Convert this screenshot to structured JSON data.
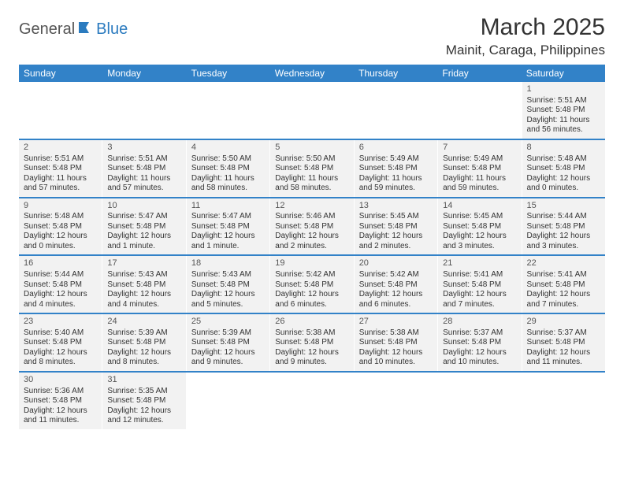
{
  "logo": {
    "text_general": "General",
    "text_blue": "Blue",
    "icon_color": "#2b7bbf"
  },
  "title": "March 2025",
  "location": "Mainit, Caraga, Philippines",
  "day_headers": [
    "Sunday",
    "Monday",
    "Tuesday",
    "Wednesday",
    "Thursday",
    "Friday",
    "Saturday"
  ],
  "colors": {
    "header_bg": "#3282c8",
    "cell_bg": "#f2f2f2",
    "row_border": "#3282c8",
    "text": "#333333"
  },
  "weeks": [
    [
      {
        "day": "",
        "sunrise": "",
        "sunset": "",
        "daylight": ""
      },
      {
        "day": "",
        "sunrise": "",
        "sunset": "",
        "daylight": ""
      },
      {
        "day": "",
        "sunrise": "",
        "sunset": "",
        "daylight": ""
      },
      {
        "day": "",
        "sunrise": "",
        "sunset": "",
        "daylight": ""
      },
      {
        "day": "",
        "sunrise": "",
        "sunset": "",
        "daylight": ""
      },
      {
        "day": "",
        "sunrise": "",
        "sunset": "",
        "daylight": ""
      },
      {
        "day": "1",
        "sunrise": "Sunrise: 5:51 AM",
        "sunset": "Sunset: 5:48 PM",
        "daylight": "Daylight: 11 hours and 56 minutes."
      }
    ],
    [
      {
        "day": "2",
        "sunrise": "Sunrise: 5:51 AM",
        "sunset": "Sunset: 5:48 PM",
        "daylight": "Daylight: 11 hours and 57 minutes."
      },
      {
        "day": "3",
        "sunrise": "Sunrise: 5:51 AM",
        "sunset": "Sunset: 5:48 PM",
        "daylight": "Daylight: 11 hours and 57 minutes."
      },
      {
        "day": "4",
        "sunrise": "Sunrise: 5:50 AM",
        "sunset": "Sunset: 5:48 PM",
        "daylight": "Daylight: 11 hours and 58 minutes."
      },
      {
        "day": "5",
        "sunrise": "Sunrise: 5:50 AM",
        "sunset": "Sunset: 5:48 PM",
        "daylight": "Daylight: 11 hours and 58 minutes."
      },
      {
        "day": "6",
        "sunrise": "Sunrise: 5:49 AM",
        "sunset": "Sunset: 5:48 PM",
        "daylight": "Daylight: 11 hours and 59 minutes."
      },
      {
        "day": "7",
        "sunrise": "Sunrise: 5:49 AM",
        "sunset": "Sunset: 5:48 PM",
        "daylight": "Daylight: 11 hours and 59 minutes."
      },
      {
        "day": "8",
        "sunrise": "Sunrise: 5:48 AM",
        "sunset": "Sunset: 5:48 PM",
        "daylight": "Daylight: 12 hours and 0 minutes."
      }
    ],
    [
      {
        "day": "9",
        "sunrise": "Sunrise: 5:48 AM",
        "sunset": "Sunset: 5:48 PM",
        "daylight": "Daylight: 12 hours and 0 minutes."
      },
      {
        "day": "10",
        "sunrise": "Sunrise: 5:47 AM",
        "sunset": "Sunset: 5:48 PM",
        "daylight": "Daylight: 12 hours and 1 minute."
      },
      {
        "day": "11",
        "sunrise": "Sunrise: 5:47 AM",
        "sunset": "Sunset: 5:48 PM",
        "daylight": "Daylight: 12 hours and 1 minute."
      },
      {
        "day": "12",
        "sunrise": "Sunrise: 5:46 AM",
        "sunset": "Sunset: 5:48 PM",
        "daylight": "Daylight: 12 hours and 2 minutes."
      },
      {
        "day": "13",
        "sunrise": "Sunrise: 5:45 AM",
        "sunset": "Sunset: 5:48 PM",
        "daylight": "Daylight: 12 hours and 2 minutes."
      },
      {
        "day": "14",
        "sunrise": "Sunrise: 5:45 AM",
        "sunset": "Sunset: 5:48 PM",
        "daylight": "Daylight: 12 hours and 3 minutes."
      },
      {
        "day": "15",
        "sunrise": "Sunrise: 5:44 AM",
        "sunset": "Sunset: 5:48 PM",
        "daylight": "Daylight: 12 hours and 3 minutes."
      }
    ],
    [
      {
        "day": "16",
        "sunrise": "Sunrise: 5:44 AM",
        "sunset": "Sunset: 5:48 PM",
        "daylight": "Daylight: 12 hours and 4 minutes."
      },
      {
        "day": "17",
        "sunrise": "Sunrise: 5:43 AM",
        "sunset": "Sunset: 5:48 PM",
        "daylight": "Daylight: 12 hours and 4 minutes."
      },
      {
        "day": "18",
        "sunrise": "Sunrise: 5:43 AM",
        "sunset": "Sunset: 5:48 PM",
        "daylight": "Daylight: 12 hours and 5 minutes."
      },
      {
        "day": "19",
        "sunrise": "Sunrise: 5:42 AM",
        "sunset": "Sunset: 5:48 PM",
        "daylight": "Daylight: 12 hours and 6 minutes."
      },
      {
        "day": "20",
        "sunrise": "Sunrise: 5:42 AM",
        "sunset": "Sunset: 5:48 PM",
        "daylight": "Daylight: 12 hours and 6 minutes."
      },
      {
        "day": "21",
        "sunrise": "Sunrise: 5:41 AM",
        "sunset": "Sunset: 5:48 PM",
        "daylight": "Daylight: 12 hours and 7 minutes."
      },
      {
        "day": "22",
        "sunrise": "Sunrise: 5:41 AM",
        "sunset": "Sunset: 5:48 PM",
        "daylight": "Daylight: 12 hours and 7 minutes."
      }
    ],
    [
      {
        "day": "23",
        "sunrise": "Sunrise: 5:40 AM",
        "sunset": "Sunset: 5:48 PM",
        "daylight": "Daylight: 12 hours and 8 minutes."
      },
      {
        "day": "24",
        "sunrise": "Sunrise: 5:39 AM",
        "sunset": "Sunset: 5:48 PM",
        "daylight": "Daylight: 12 hours and 8 minutes."
      },
      {
        "day": "25",
        "sunrise": "Sunrise: 5:39 AM",
        "sunset": "Sunset: 5:48 PM",
        "daylight": "Daylight: 12 hours and 9 minutes."
      },
      {
        "day": "26",
        "sunrise": "Sunrise: 5:38 AM",
        "sunset": "Sunset: 5:48 PM",
        "daylight": "Daylight: 12 hours and 9 minutes."
      },
      {
        "day": "27",
        "sunrise": "Sunrise: 5:38 AM",
        "sunset": "Sunset: 5:48 PM",
        "daylight": "Daylight: 12 hours and 10 minutes."
      },
      {
        "day": "28",
        "sunrise": "Sunrise: 5:37 AM",
        "sunset": "Sunset: 5:48 PM",
        "daylight": "Daylight: 12 hours and 10 minutes."
      },
      {
        "day": "29",
        "sunrise": "Sunrise: 5:37 AM",
        "sunset": "Sunset: 5:48 PM",
        "daylight": "Daylight: 12 hours and 11 minutes."
      }
    ],
    [
      {
        "day": "30",
        "sunrise": "Sunrise: 5:36 AM",
        "sunset": "Sunset: 5:48 PM",
        "daylight": "Daylight: 12 hours and 11 minutes."
      },
      {
        "day": "31",
        "sunrise": "Sunrise: 5:35 AM",
        "sunset": "Sunset: 5:48 PM",
        "daylight": "Daylight: 12 hours and 12 minutes."
      },
      {
        "day": "",
        "sunrise": "",
        "sunset": "",
        "daylight": ""
      },
      {
        "day": "",
        "sunrise": "",
        "sunset": "",
        "daylight": ""
      },
      {
        "day": "",
        "sunrise": "",
        "sunset": "",
        "daylight": ""
      },
      {
        "day": "",
        "sunrise": "",
        "sunset": "",
        "daylight": ""
      },
      {
        "day": "",
        "sunrise": "",
        "sunset": "",
        "daylight": ""
      }
    ]
  ]
}
